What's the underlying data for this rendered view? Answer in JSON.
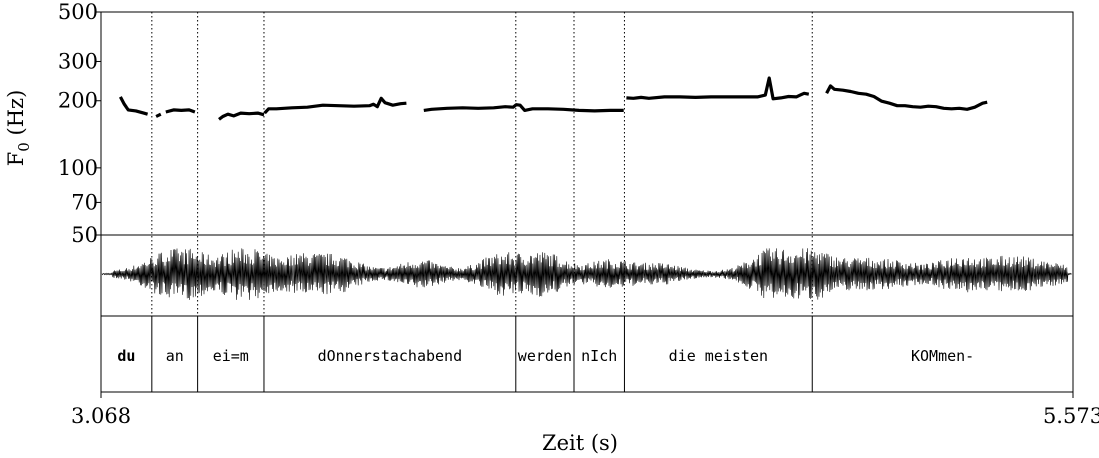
{
  "chart_data": {
    "type": "line",
    "title": "",
    "xlabel": "Zeit (s)",
    "ylabel": "F0 (Hz)",
    "ylabel_main": "F",
    "ylabel_sub": "0",
    "ylabel_unit": " (Hz)",
    "xlim": [
      3.068,
      5.573
    ],
    "x_tick_labels": [
      "3.068",
      "5.573"
    ],
    "ylim": [
      50,
      500
    ],
    "y_scale": "log",
    "y_ticks": [
      50,
      70,
      100,
      200,
      300,
      500
    ],
    "y_tick_labels": [
      "50",
      "70",
      "100",
      "200",
      "300",
      "500"
    ],
    "boundaries": [
      3.068,
      3.199,
      3.317,
      3.488,
      4.137,
      4.287,
      4.417,
      4.901,
      5.573
    ],
    "tier_dividers": [
      3.199,
      3.317,
      3.488,
      4.137,
      4.287,
      4.417,
      4.901
    ],
    "words": [
      {
        "label": "du",
        "start": 3.068,
        "end": 3.199,
        "bold": true
      },
      {
        "label": "an",
        "start": 3.199,
        "end": 3.317,
        "bold": false
      },
      {
        "label": "ei=m",
        "start": 3.317,
        "end": 3.488,
        "bold": false
      },
      {
        "label": "dOnnerstachabend",
        "start": 3.488,
        "end": 4.137,
        "bold": false
      },
      {
        "label": "werden",
        "start": 4.137,
        "end": 4.287,
        "bold": false
      },
      {
        "label": "nIch",
        "start": 4.287,
        "end": 4.417,
        "bold": false
      },
      {
        "label": "die meisten",
        "start": 4.417,
        "end": 4.901,
        "bold": false
      },
      {
        "label": "KOMmen-",
        "start": 4.901,
        "end": 5.573,
        "bold": false
      }
    ],
    "series": [
      {
        "points": [
          [
            3.118,
            208
          ],
          [
            3.128,
            193
          ],
          [
            3.138,
            182
          ],
          [
            3.158,
            180
          ],
          [
            3.178,
            176
          ],
          [
            3.188,
            174
          ]
        ]
      },
      {
        "points": [
          [
            3.21,
            170
          ],
          [
            3.222,
            174
          ]
        ]
      },
      {
        "points": [
          [
            3.235,
            178
          ],
          [
            3.255,
            182
          ],
          [
            3.275,
            181
          ],
          [
            3.295,
            182
          ],
          [
            3.31,
            178
          ]
        ]
      },
      {
        "points": [
          [
            3.372,
            165
          ],
          [
            3.382,
            170
          ],
          [
            3.395,
            174
          ],
          [
            3.41,
            171
          ],
          [
            3.428,
            176
          ],
          [
            3.45,
            175
          ],
          [
            3.472,
            176
          ],
          [
            3.488,
            173
          ]
        ]
      },
      {
        "points": [
          [
            3.49,
            176
          ],
          [
            3.5,
            184
          ],
          [
            3.52,
            184
          ],
          [
            3.56,
            186
          ],
          [
            3.6,
            187
          ],
          [
            3.64,
            191
          ],
          [
            3.68,
            190
          ],
          [
            3.72,
            189
          ],
          [
            3.76,
            190
          ],
          [
            3.77,
            193
          ],
          [
            3.78,
            188
          ],
          [
            3.79,
            205
          ],
          [
            3.8,
            196
          ],
          [
            3.82,
            191
          ],
          [
            3.84,
            194
          ],
          [
            3.855,
            195
          ]
        ]
      },
      {
        "points": [
          [
            3.9,
            181
          ],
          [
            3.92,
            183
          ],
          [
            3.96,
            185
          ],
          [
            4.0,
            186
          ],
          [
            4.04,
            185
          ],
          [
            4.08,
            186
          ],
          [
            4.11,
            188
          ],
          [
            4.13,
            187
          ],
          [
            4.138,
            192
          ],
          [
            4.148,
            191
          ],
          [
            4.16,
            181
          ],
          [
            4.18,
            184
          ],
          [
            4.22,
            184
          ],
          [
            4.26,
            183
          ],
          [
            4.3,
            181
          ],
          [
            4.34,
            180
          ],
          [
            4.38,
            181
          ],
          [
            4.415,
            181
          ]
        ]
      },
      {
        "points": [
          [
            4.422,
            206
          ],
          [
            4.44,
            205
          ],
          [
            4.46,
            207
          ],
          [
            4.48,
            205
          ],
          [
            4.52,
            208
          ],
          [
            4.56,
            208
          ],
          [
            4.6,
            207
          ],
          [
            4.64,
            208
          ],
          [
            4.68,
            208
          ],
          [
            4.72,
            208
          ],
          [
            4.76,
            208
          ],
          [
            4.78,
            212
          ],
          [
            4.79,
            253
          ],
          [
            4.8,
            204
          ],
          [
            4.82,
            206
          ],
          [
            4.84,
            209
          ],
          [
            4.86,
            208
          ],
          [
            4.87,
            212
          ],
          [
            4.88,
            216
          ],
          [
            4.892,
            214
          ]
        ]
      },
      {
        "points": [
          [
            4.938,
            216
          ],
          [
            4.948,
            233
          ],
          [
            4.958,
            225
          ],
          [
            4.98,
            223
          ],
          [
            5.0,
            220
          ],
          [
            5.02,
            216
          ],
          [
            5.04,
            214
          ],
          [
            5.06,
            209
          ],
          [
            5.08,
            199
          ],
          [
            5.1,
            195
          ],
          [
            5.12,
            190
          ],
          [
            5.14,
            190
          ],
          [
            5.16,
            188
          ],
          [
            5.18,
            187
          ],
          [
            5.2,
            189
          ],
          [
            5.22,
            188
          ],
          [
            5.24,
            185
          ],
          [
            5.26,
            184
          ],
          [
            5.28,
            185
          ],
          [
            5.3,
            183
          ],
          [
            5.32,
            187
          ],
          [
            5.34,
            195
          ],
          [
            5.352,
            197
          ]
        ]
      }
    ]
  }
}
